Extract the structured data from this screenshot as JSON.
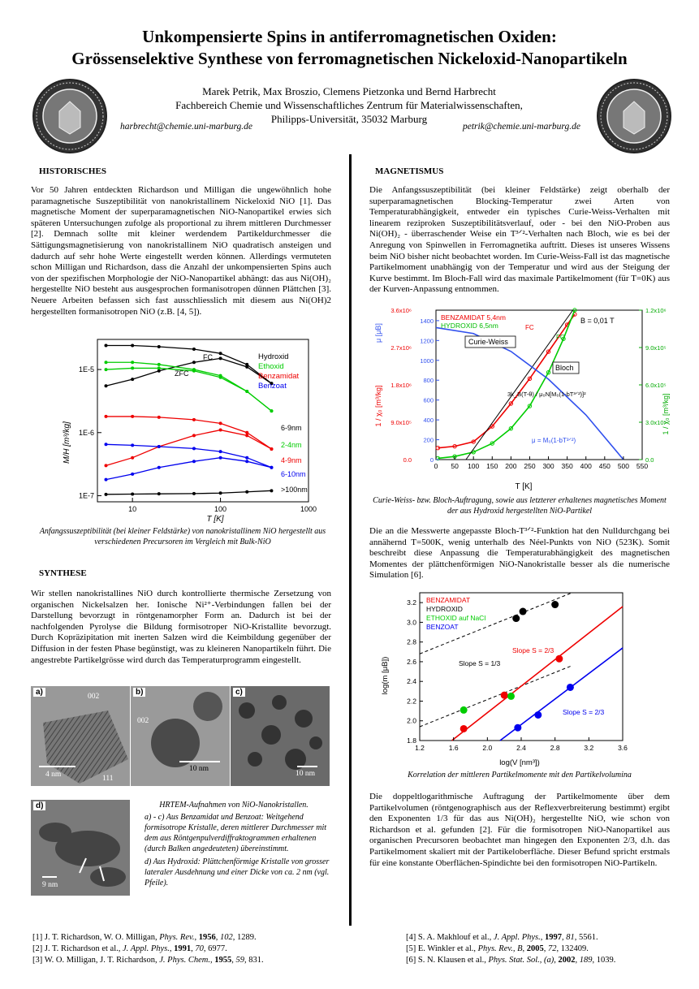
{
  "header": {
    "title_line1": "Unkompensierte Spins in antiferromagnetischen Oxiden:",
    "title_line2": "Grössenselektive Synthese von ferromagnetischen Nickeloxid-Nanopartikeln",
    "authors": "Marek Petrik, Max Broszio, Clemens Pietzonka und Bernd Harbrecht",
    "affiliation1": "Fachbereich Chemie und Wissenschaftliches Zentrum für Materialwissenschaften,",
    "affiliation2": "Philipps-Universität, 35032 Marburg",
    "email_left": "harbrecht@chemie.uni-marburg.de",
    "email_right": "petrik@chemie.uni-marburg.de"
  },
  "sections": {
    "historisches": {
      "heading": "HISTORISCHES",
      "text": "Vor 50 Jahren entdeckten Richardson und Milligan die ungewöhnlich hohe paramagnetische Suszeptibilität von nanokristallinem Nickeloxid NiO [1]. Das magnetische Moment der superparamagnetischen NiO-Nanopartikel erwies sich späteren Untersuchungen zufolge als proportional zu ihrem mittleren Durchmesser [2]. Demnach sollte mit kleiner werdendem Partikeldurchmesser die Sättigungsmagnetisierung von nanokristallinem NiO quadratisch ansteigen und dadurch auf sehr hohe Werte eingestellt werden können. Allerdings vermuteten schon Milligan und Richardson, dass die Anzahl der unkompensierten Spins auch von der spezifischen Morphologie der NiO-Nanopartikel abhängt: das aus Ni(OH)₂ hergestellte NiO besteht aus ausgesprochen formanisotropen dünnen Plättchen [3]. Neuere Arbeiten befassen sich fast ausschliesslich mit diesem aus Ni(OH)2 hergestellten formanisotropen NiO (z.B. [4, 5])."
    },
    "synthese": {
      "heading": "SYNTHESE",
      "text": "Wir stellen nanokristallines NiO durch kontrollierte thermische Zersetzung von organischen Nickelsalzen her. Ionische Ni²⁺-Verbindungen fallen bei der Darstellung bevorzugt in röntgenamorpher Form an. Dadurch ist bei der nachfolgenden Pyrolyse die Bildung formisotroper NiO-Kristallite bevorzugt. Durch Kopräzipitation mit inerten Salzen wird die Keimbildung gegenüber der Diffusion in der festen Phase begünstigt, was zu kleineren Nanopartikeln führt. Die angestrebte Partikelgrösse wird durch das Temperaturprogramm eingestellt."
    },
    "magnetismus": {
      "heading": "MAGNETISMUS",
      "text": "Die Anfangssuszeptibilität (bei kleiner Feldstärke) zeigt oberhalb der superparamagnetischen Blocking-Temperatur zwei Arten von Temperaturabhängigkeit, entweder ein typisches Curie-Weiss-Verhalten mit linearem reziproken Suszeptibilitätsverlauf, oder - bei den NiO-Proben aus Ni(OH)₂ - überraschender Weise ein T³ᐟ²-Verhalten nach Bloch, wie es bei der Anregung von Spinwellen in Ferromagnetika auftritt. Dieses ist unseres Wissens beim NiO bisher nicht beobachtet worden. Im Curie-Weiss-Fall ist das magnetische Partikelmoment unabhängig von der Temperatur und wird aus der Steigung der Kurve bestimmt. Im Bloch-Fall wird das maximale Partikelmoment (für T=0K) aus der Kurven-Anpassung entnommen.",
      "text2": "Die an die Messwerte angepasste Bloch-T³ᐟ²-Funktion hat den Nulldurchgang bei annähernd T=500K, wenig unterhalb des Néel-Punkts von NiO (523K). Somit beschreibt diese Anpassung die Temperaturabhängigkeit des magnetischen Momentes der plättchenförmigen NiO-Nanokristalle besser als die numerische Simulation [6].",
      "text3": "Die doppeltlogarithmische Auftragung der Partikelmomente über dem Partikelvolumen (röntgenographisch aus der Reflexverbreiterung bestimmt) ergibt den Exponenten 1/3 für das aus Ni(OH)₂ hergestellte NiO, wie schon von Richardson et al. gefunden [2]. Für die formisotropen NiO-Nanopartikel aus organischen Precursoren beobachtet man hingegen den Exponenten 2/3, d.h. das Partikelmoment skaliert mit der Partikeloberfläche. Dieser Befund spricht erstmals für eine konstante Oberflächen-Spindichte bei den formisotropen NiO-Partikeln."
    }
  },
  "captions": {
    "chart1": "Anfangssuszeptibilität (bei kleiner Feldstärke) von nanokristallinem NiO hergestellt aus verschiedenen Precursoren im Vergleich mit Bulk-NiO",
    "chart2": "Curie-Weiss- bzw. Bloch-Auftragung, sowie aus letzterer erhaltenes magnetisches Moment der aus Hydroxid hergestellten NiO-Partikel",
    "chart3": "Korrelation der mittleren Partikelmomente mit den Partikelvolumina",
    "hrtem_title": "HRTEM-Aufnahmen von NiO-Nanokristallen.",
    "hrtem_ac": "a) - c) Aus Benzamidat und Benzoat: Weitgehend formisotrope Kristalle, deren mittlerer Durchmesser mit dem aus Röntgenpulverdiffraktogrammen erhaltenen (durch Balken angedeuteten) übereinstimmt.",
    "hrtem_d": "d) Aus Hydroxid: Plättchenförmige Kristalle von grosser lateraler Ausdehnung und einer Dicke von ca. 2 nm (vgl. Pfeile)."
  },
  "micrographs": {
    "a": {
      "label": "a)",
      "scale": "4 nm",
      "ann1": "002",
      "ann2": "111"
    },
    "b": {
      "label": "b)",
      "scale": "10 nm",
      "ann1": "002"
    },
    "c": {
      "label": "c)",
      "scale": "10 nm"
    },
    "d": {
      "label": "d)",
      "scale": "9 nm"
    }
  },
  "references_left": [
    {
      "n": "[1]",
      "authors": "J. T. Richardson, W. O. Milligan,",
      "journal": "Phys. Rev.",
      "year": "1956",
      "vol": "102",
      "page": "1289."
    },
    {
      "n": "[2]",
      "authors": "J. T. Richardson et al.,",
      "journal": "J. Appl. Phys.",
      "year": "1991",
      "vol": "70",
      "page": "6977."
    },
    {
      "n": "[3]",
      "authors": "W. O. Milligan, J. T. Richardson,",
      "journal": "J. Phys. Chem.",
      "year": "1955",
      "vol": "59",
      "page": "831."
    }
  ],
  "references_right": [
    {
      "n": "[4]",
      "authors": "S. A. Makhlouf et al.,",
      "journal": "J. Appl. Phys.",
      "year": "1997",
      "vol": "81",
      "page": "5561."
    },
    {
      "n": "[5]",
      "authors": "E. Winkler et al.,",
      "journal": "Phys. Rev., B",
      "year": "2005",
      "vol": "72",
      "page": "132409."
    },
    {
      "n": "[6]",
      "authors": "S. N. Klausen et al.,",
      "journal": "Phys. Stat. Sol., (a)",
      "year": "2002",
      "vol": "189",
      "page": "1039."
    }
  ],
  "chart_data": [
    {
      "type": "line",
      "xlabel": "T [K]",
      "ylabel": "M/H [m³/kg]",
      "x_scale": "log",
      "y_scale": "log",
      "xlim": [
        4,
        1000
      ],
      "ylim": [
        8e-08,
        3e-05
      ],
      "x_ticks": [
        "10",
        "100",
        "1000"
      ],
      "y_ticks": [
        "1E-7",
        "1E-6",
        "1E-5"
      ],
      "annotations": [
        "FC",
        "ZFC"
      ],
      "legend": [
        {
          "label": "Hydroxid",
          "color": "#000000"
        },
        {
          "label": "Ethoxid",
          "color": "#00cc00"
        },
        {
          "label": "Benzamidat",
          "color": "#ee0000"
        },
        {
          "label": "Benzoat",
          "color": "#0000ee"
        }
      ],
      "size_labels": [
        {
          "label": "6-9nm",
          "color": "#000000"
        },
        {
          "label": "2-4nm",
          "color": "#00cc00"
        },
        {
          "label": "4-9nm",
          "color": "#ee0000"
        },
        {
          "label": "6-10nm",
          "color": "#0000ee"
        },
        {
          "label": ">100nm",
          "color": "#000000"
        }
      ],
      "series": [
        {
          "name": "Hydroxid FC",
          "color": "#000000",
          "x": [
            5,
            10,
            20,
            50,
            100,
            200,
            380
          ],
          "y": [
            2.4e-05,
            2.4e-05,
            2.3e-05,
            2.1e-05,
            1.8e-05,
            1.2e-05,
            6e-06
          ]
        },
        {
          "name": "Hydroxid ZFC",
          "color": "#000000",
          "x": [
            5,
            10,
            20,
            50,
            100,
            200,
            380
          ],
          "y": [
            5.5e-06,
            7e-06,
            9.5e-06,
            1.3e-05,
            1.5e-05,
            1.1e-05,
            6e-06
          ]
        },
        {
          "name": "Ethoxid FC",
          "color": "#00cc00",
          "x": [
            5,
            10,
            20,
            50,
            100,
            200,
            380
          ],
          "y": [
            1.3e-05,
            1.3e-05,
            1.2e-05,
            1e-05,
            8e-06,
            4.5e-06,
            2.2e-06
          ]
        },
        {
          "name": "Ethoxid ZFC",
          "color": "#00cc00",
          "x": [
            5,
            10,
            20,
            50,
            100,
            200,
            380
          ],
          "y": [
            1e-05,
            1.05e-05,
            1.05e-05,
            9.5e-06,
            7.5e-06,
            4.5e-06,
            2.2e-06
          ]
        },
        {
          "name": "Benzamidat FC",
          "color": "#ee0000",
          "x": [
            5,
            10,
            20,
            50,
            100,
            200,
            380
          ],
          "y": [
            1.8e-06,
            1.8e-06,
            1.75e-06,
            1.6e-06,
            1.4e-06,
            1e-06,
            5.5e-07
          ]
        },
        {
          "name": "Benzamidat ZFC",
          "color": "#ee0000",
          "x": [
            5,
            10,
            20,
            50,
            100,
            200,
            380
          ],
          "y": [
            3e-07,
            4e-07,
            6e-07,
            9e-07,
            1.1e-06,
            9e-07,
            5.5e-07
          ]
        },
        {
          "name": "Benzoat FC",
          "color": "#0000ee",
          "x": [
            5,
            10,
            20,
            50,
            100,
            200,
            380
          ],
          "y": [
            6.5e-07,
            6.3e-07,
            6e-07,
            5.6e-07,
            5e-07,
            4e-07,
            2.8e-07
          ]
        },
        {
          "name": "Benzoat ZFC",
          "color": "#0000ee",
          "x": [
            5,
            10,
            20,
            50,
            100,
            200,
            380
          ],
          "y": [
            1.8e-07,
            2.2e-07,
            2.8e-07,
            3.5e-07,
            4e-07,
            3.5e-07,
            2.8e-07
          ]
        },
        {
          "name": "Bulk",
          "color": "#000000",
          "x": [
            5,
            10,
            20,
            50,
            100,
            200,
            380
          ],
          "y": [
            1.05e-07,
            1.06e-07,
            1.07e-07,
            1.08e-07,
            1.1e-07,
            1.15e-07,
            1.2e-07
          ]
        }
      ]
    },
    {
      "type": "line",
      "xlabel": "T [K]",
      "xlim": [
        0,
        550
      ],
      "x_ticks": [
        "0",
        "50",
        "100",
        "150",
        "200",
        "250",
        "300",
        "350",
        "400",
        "450",
        "500",
        "550"
      ],
      "left_outer_ticks": [
        "0.0",
        "9.0x10⁵",
        "1.8x10⁶",
        "2.7x10⁶",
        "3.6x10⁶"
      ],
      "left_outer_label": "1 / χ₀  [m³/kg]",
      "left_inner_ticks": [
        "0",
        "200",
        "400",
        "600",
        "800",
        "1000",
        "1200",
        "1400"
      ],
      "left_inner_label": "μ [μB]",
      "right_ticks": [
        "0.0",
        "3.0x10⁵",
        "6.0x10⁵",
        "9.0x10⁵",
        "1.2x10⁶"
      ],
      "right_label": "1 / χ₀  [m³/kg]",
      "legend": [
        {
          "label": "BENZAMIDAT 5,4nm",
          "color": "#ee0000"
        },
        {
          "label": "HYDROXID 6,5nm",
          "color": "#00cc00"
        }
      ],
      "field": "B = 0,01 T",
      "annotations": [
        "FC",
        "FC",
        "Curie-Weiss",
        "Bloch",
        "3k_B(T-θ) / μ₀N[M₀(1-bT³ᐟ²)]²",
        "μ = M₀(1-bT³ᐟ²)"
      ],
      "series": [
        {
          "name": "BENZAMIDAT 5,4nm",
          "color": "#ee0000",
          "x": [
            5,
            50,
            100,
            150,
            200,
            250,
            300,
            350,
            370
          ],
          "y_scale": "left_outer",
          "y": [
            280000.0,
            320000.0,
            430000.0,
            800000.0,
            1350000.0,
            1950000.0,
            2600000.0,
            3250000.0,
            3500000.0
          ]
        },
        {
          "name": "HYDROXID 6,5nm",
          "color": "#00cc00",
          "x": [
            5,
            50,
            100,
            150,
            200,
            250,
            300,
            340,
            370
          ],
          "y_scale": "right",
          "y": [
            10000.0,
            25000.0,
            60000.0,
            130000.0,
            250000.0,
            430000.0,
            700000.0,
            970000.0,
            1200000.0
          ]
        },
        {
          "name": "Curie-Weiss fit",
          "color": "#000000",
          "x": [
            80,
            365
          ],
          "y_scale": "left_outer",
          "y": [
            0,
            3600000.0
          ]
        },
        {
          "name": "μ = M₀(1-bT³ᐟ²)",
          "color": "#3050ee",
          "x": [
            0,
            100,
            200,
            300,
            400,
            500
          ],
          "y_scale": "left_inner",
          "y": [
            1330,
            1270,
            1090,
            810,
            450,
            0
          ]
        }
      ]
    },
    {
      "type": "scatter",
      "xlabel": "log(V [nm³])",
      "ylabel": "log(m [μB])",
      "xlim": [
        1.2,
        3.6
      ],
      "ylim": [
        1.8,
        3.3
      ],
      "x_ticks": [
        "1.2",
        "1.6",
        "2.0",
        "2.4",
        "2.8",
        "3.2",
        "3.6"
      ],
      "y_ticks": [
        "1.8",
        "2.0",
        "2.2",
        "2.4",
        "2.6",
        "2.8",
        "3.0",
        "3.2"
      ],
      "legend": [
        {
          "label": "BENZAMIDAT",
          "color": "#ee0000"
        },
        {
          "label": "HYDROXID",
          "color": "#000000"
        },
        {
          "label": "ETHOXID auf NaCl",
          "color": "#00cc00"
        },
        {
          "label": "BENZOAT",
          "color": "#0000ee"
        }
      ],
      "annotations": [
        {
          "text": "Slope S = 1/3",
          "color": "#000000"
        },
        {
          "text": "Slope S = 2/3",
          "color": "#ee0000"
        },
        {
          "text": "Slope S = 2/3",
          "color": "#0000ee"
        }
      ],
      "series": [
        {
          "name": "HYDROXID",
          "color": "#000000",
          "x": [
            2.34,
            2.42,
            2.8
          ],
          "y": [
            3.04,
            3.11,
            3.18
          ]
        },
        {
          "name": "BENZAMIDAT",
          "color": "#ee0000",
          "x": [
            1.72,
            2.2,
            2.85
          ],
          "y": [
            1.92,
            2.26,
            2.63
          ]
        },
        {
          "name": "ETHOXID auf NaCl",
          "color": "#00cc00",
          "x": [
            1.72,
            2.28
          ],
          "y": [
            2.11,
            2.25
          ]
        },
        {
          "name": "BENZOAT",
          "color": "#0000ee",
          "x": [
            2.36,
            2.6,
            2.98
          ],
          "y": [
            1.93,
            2.06,
            2.34
          ]
        }
      ],
      "fit_lines": [
        {
          "color": "#000000",
          "dashed": true,
          "x": [
            1.2,
            3.0
          ],
          "y": [
            2.68,
            3.3
          ]
        },
        {
          "color": "#000000",
          "dashed": true,
          "x": [
            1.2,
            3.0
          ],
          "y": [
            1.94,
            2.56
          ]
        },
        {
          "color": "#ee0000",
          "dashed": false,
          "x": [
            1.58,
            3.6
          ],
          "y": [
            1.8,
            3.16
          ]
        },
        {
          "color": "#0000ee",
          "dashed": false,
          "x": [
            2.15,
            3.6
          ],
          "y": [
            1.8,
            2.74
          ]
        }
      ]
    }
  ]
}
